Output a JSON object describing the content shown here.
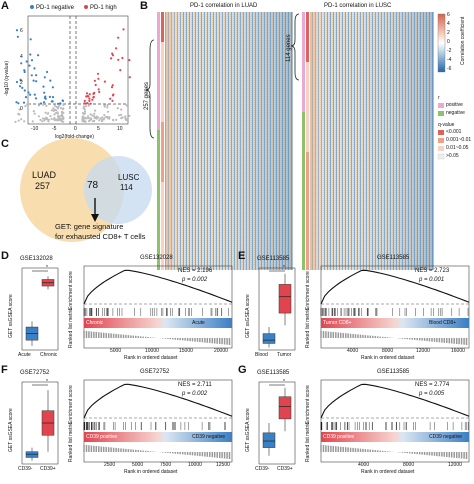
{
  "panels": {
    "A": {
      "letter": "A",
      "legend_negative": "PD-1 negative",
      "legend_high": "PD-1 high",
      "ylabel": "-log10 (q-value)",
      "xlabel": "log2(fold-change)",
      "yticks": [
        "6",
        "4",
        "2",
        "0"
      ],
      "xticks": [
        "-10",
        "-5",
        "0",
        "5",
        "10"
      ],
      "colors": {
        "negative": "#3b7fc4",
        "high": "#e0454f",
        "neutral": "#bbbbbb"
      }
    },
    "B": {
      "letter": "B",
      "title_luad": "PD-1 correlation in LUAD",
      "title_lusc": "PD-1 correlation in LUSC",
      "genes_luad": "257 genes",
      "genes_lusc": "114 genes",
      "colorbar_label": "Correlation coefficient",
      "colorbar_ticks": [
        "6",
        "4",
        "2",
        "0",
        "-2",
        "-4",
        "-6"
      ],
      "r_label": "r",
      "r_positive": "positive",
      "r_negative": "negative",
      "q_label": "q-value",
      "q_levels": [
        "<0.001",
        "0.001~0.01",
        "0.01~0.05",
        ">0.05"
      ],
      "colors": {
        "positive": "#e9a9d0",
        "negative": "#8dc16b",
        "q1": "#e0605a",
        "q2": "#f0a08a",
        "q3": "#f7d2c4",
        "q4": "#eeeeee"
      }
    },
    "C": {
      "letter": "C",
      "luad_label": "LUAD",
      "luad_count": "257",
      "lusc_label": "LUSC",
      "lusc_count": "114",
      "overlap": "78",
      "caption_line1": "GET: gene signature",
      "caption_line2": "for exhausted CD8+ T cells",
      "colors": {
        "luad": "#f7d9a6",
        "lusc": "#c6daef",
        "overlap": "#d9d3b6"
      }
    },
    "D": {
      "letter": "D",
      "box_title": "GSE132028",
      "gsea_title": "GSE132028",
      "ylabel_box": "GET ssGSEA score",
      "groups": [
        "Acute",
        "Chronic"
      ],
      "group_colors": [
        "#3b7fc4",
        "#e0454f"
      ],
      "sig": "*",
      "nes": "NES = 2.196",
      "p": "p = 0.002",
      "bar_left": "Chronic",
      "bar_right": "Acute",
      "xticks": [
        "5000",
        "10000",
        "15000",
        "20000"
      ],
      "xlabel": "Rank in ordered dataset",
      "es_label": "Enrichment score",
      "rank_label": "Ranked list metric"
    },
    "E": {
      "letter": "E",
      "box_title": "GSE113585",
      "gsea_title": "GSE113585",
      "ylabel_box": "GET ssGSEA score",
      "groups": [
        "Blood",
        "Tumor"
      ],
      "group_colors": [
        "#3b7fc4",
        "#e0454f"
      ],
      "sig": "*",
      "nes": "NES = 2.723",
      "p": "p = 0.001",
      "bar_left": "Tumor CD8+",
      "bar_right": "Blood CD8+",
      "xticks": [
        "4000",
        "8000",
        "12000",
        "16000"
      ],
      "xlabel": "Rank in ordered dataset",
      "es_label": "Enrichment score",
      "rank_label": "Ranked list metric"
    },
    "F": {
      "letter": "F",
      "box_title": "GSE72752",
      "gsea_title": "GSE72752",
      "ylabel_box": "GET ssGSEA score",
      "groups": [
        "CD39-",
        "CD39+"
      ],
      "group_colors": [
        "#3b7fc4",
        "#e0454f"
      ],
      "sig": "*",
      "nes": "NES = 2.711",
      "p": "p = 0.002",
      "bar_left": "CD39 positive",
      "bar_right": "CD39 negative",
      "xticks": [
        "2500",
        "5000",
        "7500",
        "10000",
        "12500"
      ],
      "xlabel": "Rank in ordered dataset",
      "es_label": "Enrichment score",
      "rank_label": "Ranked list metric"
    },
    "G": {
      "letter": "G",
      "box_title": "GSE113585",
      "gsea_title": "GSE113585",
      "ylabel_box": "GET ssGSEA score",
      "groups": [
        "CD39-",
        "CD39+"
      ],
      "group_colors": [
        "#3b7fc4",
        "#e0454f"
      ],
      "sig": "*",
      "nes": "NES = 2.774",
      "p": "p = 0.005",
      "bar_left": "CD39 positive",
      "bar_right": "CD39 negative",
      "xticks": [
        "4000",
        "8000",
        "12000"
      ],
      "xlabel": "Rank in ordered dataset",
      "es_label": "Enrichment score",
      "rank_label": "Ranked list metric"
    }
  }
}
